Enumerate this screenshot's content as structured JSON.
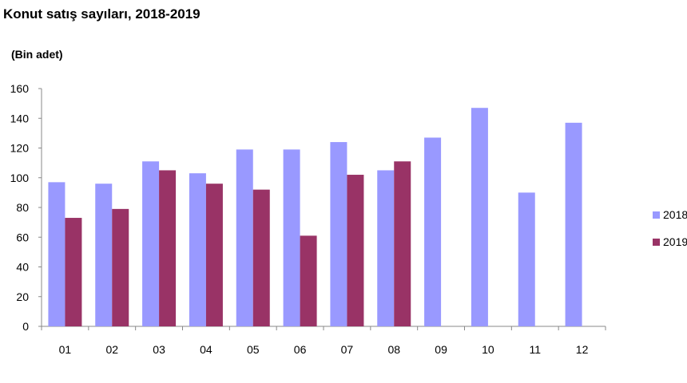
{
  "chart_data": {
    "type": "bar",
    "title": "Konut satış sayıları, 2018-2019",
    "unit_label": "(Bin adet)",
    "categories": [
      "01",
      "02",
      "03",
      "04",
      "05",
      "06",
      "07",
      "08",
      "09",
      "10",
      "11",
      "12"
    ],
    "series": [
      {
        "name": "2018",
        "color": "#9999FF",
        "values": [
          97,
          96,
          111,
          103,
          119,
          119,
          124,
          105,
          127,
          147,
          90,
          137
        ]
      },
      {
        "name": "2019",
        "color": "#993366",
        "values": [
          73,
          79,
          105,
          96,
          92,
          61,
          102,
          111,
          null,
          null,
          null,
          null
        ]
      }
    ],
    "ylim": [
      0,
      160
    ],
    "yticks": [
      0,
      20,
      40,
      60,
      80,
      100,
      120,
      140,
      160
    ],
    "grid": false,
    "legend": "right"
  }
}
